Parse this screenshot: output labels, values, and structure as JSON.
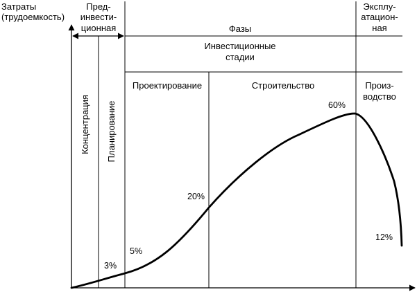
{
  "y_axis_label": {
    "line1": "Затраты",
    "line2": "(трудоемкость)"
  },
  "header": {
    "pre_investment": [
      "Пред-",
      "инвести-",
      "ционная"
    ],
    "phases": "Фазы",
    "operational": [
      "Эксплу-",
      "атацион-",
      "ная"
    ],
    "investment_stages": [
      "Инвестиционные",
      "стадии"
    ]
  },
  "stages": {
    "concentration": "Концентрация",
    "planning": "Планирование",
    "design": "Проектирование",
    "construction": "Строительство",
    "production": [
      "Произ-",
      "водство"
    ]
  },
  "percent_labels": {
    "p3": "3%",
    "p5": "5%",
    "p20": "20%",
    "p60": "60%",
    "p12": "12%"
  }
}
